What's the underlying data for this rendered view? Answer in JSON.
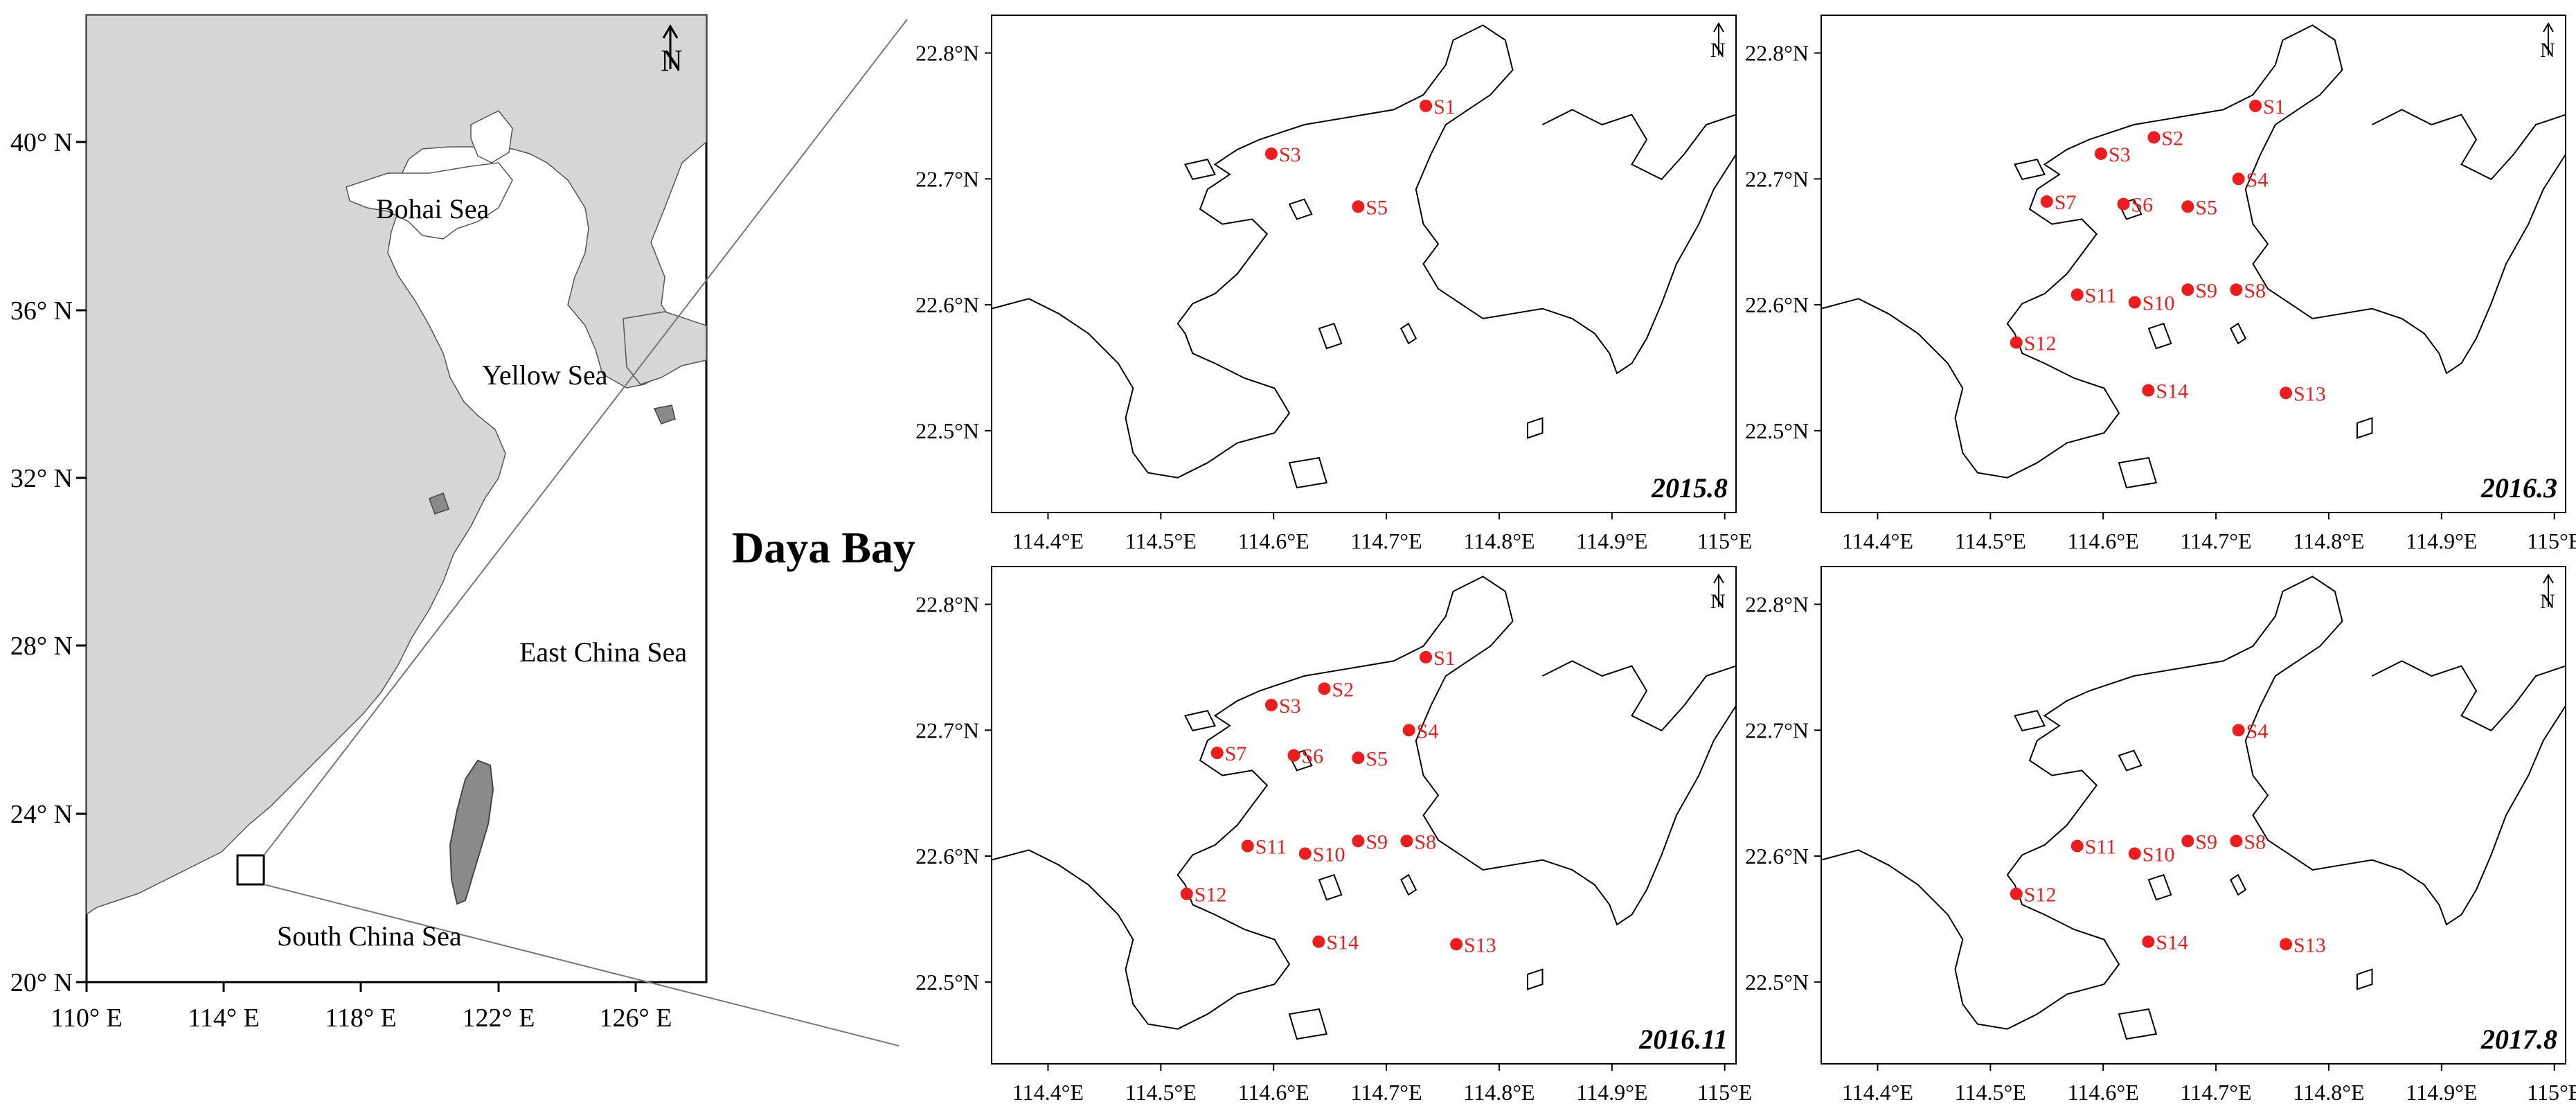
{
  "title": "Daya Bay",
  "overview": {
    "x_ticks": [
      "110° E",
      "114° E",
      "118° E",
      "122° E",
      "126° E"
    ],
    "y_ticks": [
      "40° N",
      "36° N",
      "32° N",
      "28° N",
      "24° N",
      "20° N"
    ],
    "seas": [
      "Bohai Sea",
      "Yellow Sea",
      "East China Sea",
      "South China Sea"
    ],
    "north_label": "N"
  },
  "panels": [
    {
      "label": "2015.8",
      "stations": [
        "S1",
        "S3",
        "S5"
      ]
    },
    {
      "label": "2016.3",
      "stations": [
        "S1",
        "S2",
        "S3",
        "S4",
        "S5",
        "S6",
        "S7",
        "S8",
        "S9",
        "S10",
        "S11",
        "S12",
        "S13",
        "S14"
      ]
    },
    {
      "label": "2016.11",
      "stations": [
        "S1",
        "S2",
        "S3",
        "S4",
        "S5",
        "S6",
        "S7",
        "S8",
        "S9",
        "S10",
        "S11",
        "S12",
        "S13",
        "S14"
      ]
    },
    {
      "label": "2017.8",
      "stations": [
        "S4",
        "S8",
        "S9",
        "S10",
        "S11",
        "S12",
        "S13",
        "S14"
      ]
    }
  ],
  "panel_axes": {
    "x_ticks": [
      "114.4°E",
      "114.5°E",
      "114.6°E",
      "114.7°E",
      "114.8°E",
      "114.9°E",
      "115°E"
    ],
    "y_ticks": [
      "22.8°N",
      "22.7°N",
      "22.6°N",
      "22.5°N"
    ],
    "north_label": "N"
  },
  "stations": {
    "S1": {
      "lon": 114.735,
      "lat": 22.758
    },
    "S2": {
      "lon": 114.645,
      "lat": 22.733
    },
    "S3": {
      "lon": 114.598,
      "lat": 22.72
    },
    "S4": {
      "lon": 114.72,
      "lat": 22.7
    },
    "S5": {
      "lon": 114.675,
      "lat": 22.678
    },
    "S6": {
      "lon": 114.618,
      "lat": 22.68
    },
    "S7": {
      "lon": 114.55,
      "lat": 22.682
    },
    "S8": {
      "lon": 114.718,
      "lat": 22.612
    },
    "S9": {
      "lon": 114.675,
      "lat": 22.612
    },
    "S10": {
      "lon": 114.628,
      "lat": 22.602
    },
    "S11": {
      "lon": 114.577,
      "lat": 22.608
    },
    "S12": {
      "lon": 114.523,
      "lat": 22.57
    },
    "S13": {
      "lon": 114.762,
      "lat": 22.53
    },
    "S14": {
      "lon": 114.64,
      "lat": 22.532
    }
  },
  "colors": {
    "station": "#ee1c1c",
    "land": "#d6d6d6",
    "sea": "#ffffff"
  }
}
